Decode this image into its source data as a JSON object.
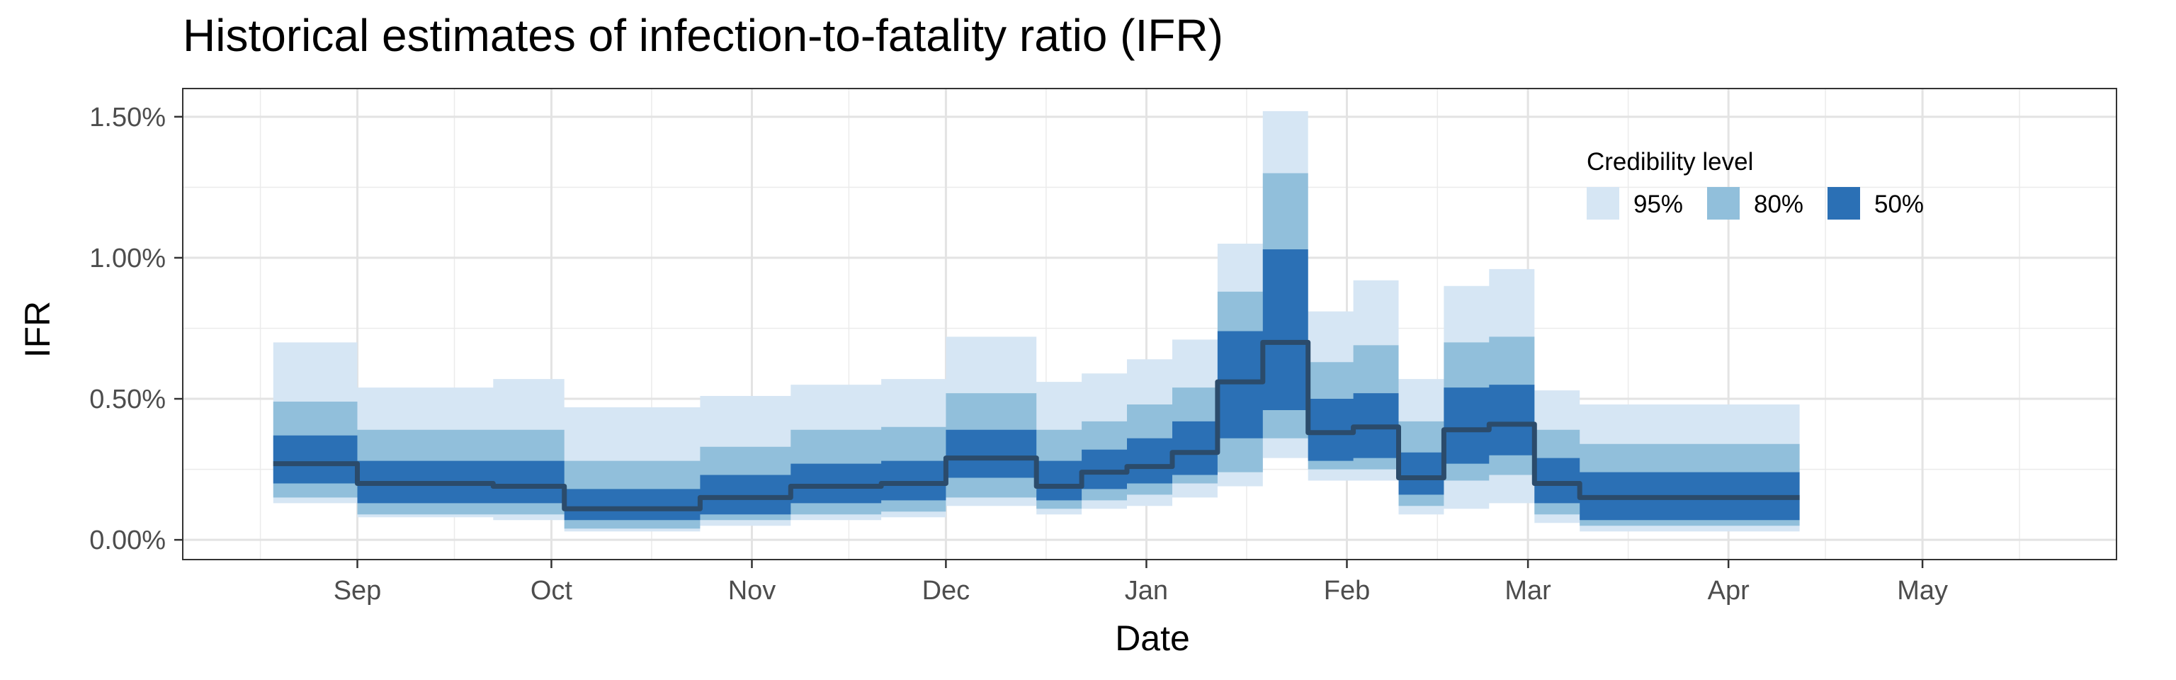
{
  "chart_data": {
    "type": "area",
    "title": "Historical estimates of infection-to-fatality ratio (IFR)",
    "xlabel": "Date",
    "ylabel": "IFR",
    "x_range": [
      "2020-08-05",
      "2021-05-31"
    ],
    "ylim": [
      -0.0007,
      0.016
    ],
    "y_ticks": [
      0,
      0.005,
      0.01,
      0.015
    ],
    "y_tick_labels": [
      "0.00%",
      "0.50%",
      "1.00%",
      "1.50%"
    ],
    "x_ticks": [
      "2020-09-01",
      "2020-10-01",
      "2020-11-01",
      "2020-12-01",
      "2021-01-01",
      "2021-02-01",
      "2021-03-01",
      "2021-04-01",
      "2021-05-01"
    ],
    "x_tick_labels": [
      "Sep",
      "Oct",
      "Nov",
      "Dec",
      "Jan",
      "Feb",
      "Mar",
      "Apr",
      "May"
    ],
    "grid": true,
    "legend": {
      "title": "Credibility level",
      "position": "top-right",
      "items": [
        {
          "label": "95%",
          "color": "#d6e6f4"
        },
        {
          "label": "80%",
          "color": "#91bfdb"
        },
        {
          "label": "50%",
          "color": "#2b70b5"
        }
      ]
    },
    "median_color": "#2b4b6b",
    "x": [
      "2020-08-19",
      "2020-09-01",
      "2020-09-01",
      "2020-09-22",
      "2020-09-22",
      "2020-10-03",
      "2020-10-03",
      "2020-10-24",
      "2020-10-24",
      "2020-11-07",
      "2020-11-07",
      "2020-11-21",
      "2020-11-21",
      "2020-12-01",
      "2020-12-01",
      "2020-12-15",
      "2020-12-15",
      "2020-12-22",
      "2020-12-22",
      "2020-12-29",
      "2020-12-29",
      "2021-01-05",
      "2021-01-05",
      "2021-01-12",
      "2021-01-12",
      "2021-01-19",
      "2021-01-19",
      "2021-01-26",
      "2021-01-26",
      "2021-02-02",
      "2021-02-02",
      "2021-02-09",
      "2021-02-09",
      "2021-02-16",
      "2021-02-16",
      "2021-02-23",
      "2021-02-23",
      "2021-03-02",
      "2021-03-02",
      "2021-03-09",
      "2021-03-09",
      "2021-04-12"
    ],
    "series": [
      {
        "name": "95%",
        "lower": [
          0.0013,
          0.0013,
          0.0008,
          0.0008,
          0.0007,
          0.0007,
          0.0003,
          0.0003,
          0.0005,
          0.0005,
          0.0007,
          0.0007,
          0.0008,
          0.0008,
          0.0012,
          0.0012,
          0.0009,
          0.0009,
          0.0011,
          0.0011,
          0.0012,
          0.0012,
          0.0015,
          0.0015,
          0.0019,
          0.0019,
          0.0029,
          0.0029,
          0.0021,
          0.0021,
          0.0021,
          0.0021,
          0.0009,
          0.0009,
          0.0011,
          0.0011,
          0.0013,
          0.0013,
          0.0006,
          0.0006,
          0.0003,
          0.0003
        ],
        "upper": [
          0.007,
          0.007,
          0.0054,
          0.0054,
          0.0057,
          0.0057,
          0.0047,
          0.0047,
          0.0051,
          0.0051,
          0.0055,
          0.0055,
          0.0057,
          0.0057,
          0.0072,
          0.0072,
          0.0056,
          0.0056,
          0.0059,
          0.0059,
          0.0064,
          0.0064,
          0.0071,
          0.0071,
          0.0105,
          0.0105,
          0.0152,
          0.0152,
          0.0081,
          0.0081,
          0.0092,
          0.0092,
          0.0057,
          0.0057,
          0.009,
          0.009,
          0.0096,
          0.0096,
          0.0053,
          0.0053,
          0.0048,
          0.0048
        ]
      },
      {
        "name": "80%",
        "lower": [
          0.0015,
          0.0015,
          0.0009,
          0.0009,
          0.0009,
          0.0009,
          0.0004,
          0.0004,
          0.0007,
          0.0007,
          0.0009,
          0.0009,
          0.001,
          0.001,
          0.0015,
          0.0015,
          0.0011,
          0.0011,
          0.0014,
          0.0014,
          0.0016,
          0.0016,
          0.002,
          0.002,
          0.0024,
          0.0024,
          0.0036,
          0.0036,
          0.0025,
          0.0025,
          0.0025,
          0.0025,
          0.0012,
          0.0012,
          0.0021,
          0.0021,
          0.0023,
          0.0023,
          0.0009,
          0.0009,
          0.0005,
          0.0005
        ],
        "upper": [
          0.0049,
          0.0049,
          0.0039,
          0.0039,
          0.0039,
          0.0039,
          0.0028,
          0.0028,
          0.0033,
          0.0033,
          0.0039,
          0.0039,
          0.004,
          0.004,
          0.0052,
          0.0052,
          0.0039,
          0.0039,
          0.0042,
          0.0042,
          0.0048,
          0.0048,
          0.0054,
          0.0054,
          0.0088,
          0.0088,
          0.013,
          0.013,
          0.0063,
          0.0063,
          0.0069,
          0.0069,
          0.0042,
          0.0042,
          0.007,
          0.007,
          0.0072,
          0.0072,
          0.0039,
          0.0039,
          0.0034,
          0.0034
        ]
      },
      {
        "name": "50%",
        "lower": [
          0.002,
          0.002,
          0.0013,
          0.0013,
          0.0013,
          0.0013,
          0.0007,
          0.0007,
          0.0009,
          0.0009,
          0.0013,
          0.0013,
          0.0014,
          0.0014,
          0.0022,
          0.0022,
          0.0014,
          0.0014,
          0.0018,
          0.0018,
          0.002,
          0.002,
          0.0023,
          0.0023,
          0.0036,
          0.0036,
          0.0046,
          0.0046,
          0.0028,
          0.0028,
          0.0029,
          0.0029,
          0.0016,
          0.0016,
          0.0027,
          0.0027,
          0.003,
          0.003,
          0.0013,
          0.0013,
          0.0007,
          0.0007
        ],
        "upper": [
          0.0037,
          0.0037,
          0.0028,
          0.0028,
          0.0028,
          0.0028,
          0.0018,
          0.0018,
          0.0023,
          0.0023,
          0.0027,
          0.0027,
          0.0028,
          0.0028,
          0.0039,
          0.0039,
          0.0028,
          0.0028,
          0.0032,
          0.0032,
          0.0036,
          0.0036,
          0.0042,
          0.0042,
          0.0074,
          0.0074,
          0.0103,
          0.0103,
          0.005,
          0.005,
          0.0052,
          0.0052,
          0.0031,
          0.0031,
          0.0054,
          0.0054,
          0.0055,
          0.0055,
          0.0029,
          0.0029,
          0.0024,
          0.0024
        ]
      },
      {
        "name": "median",
        "values": [
          0.0027,
          0.0027,
          0.002,
          0.002,
          0.0019,
          0.0019,
          0.0011,
          0.0011,
          0.0015,
          0.0015,
          0.0019,
          0.0019,
          0.002,
          0.002,
          0.0029,
          0.0029,
          0.0019,
          0.0019,
          0.0024,
          0.0024,
          0.0026,
          0.0026,
          0.0031,
          0.0031,
          0.0056,
          0.0056,
          0.007,
          0.007,
          0.0038,
          0.0038,
          0.004,
          0.004,
          0.0022,
          0.0022,
          0.0039,
          0.0039,
          0.0041,
          0.0041,
          0.002,
          0.002,
          0.0015,
          0.0015
        ]
      }
    ]
  }
}
